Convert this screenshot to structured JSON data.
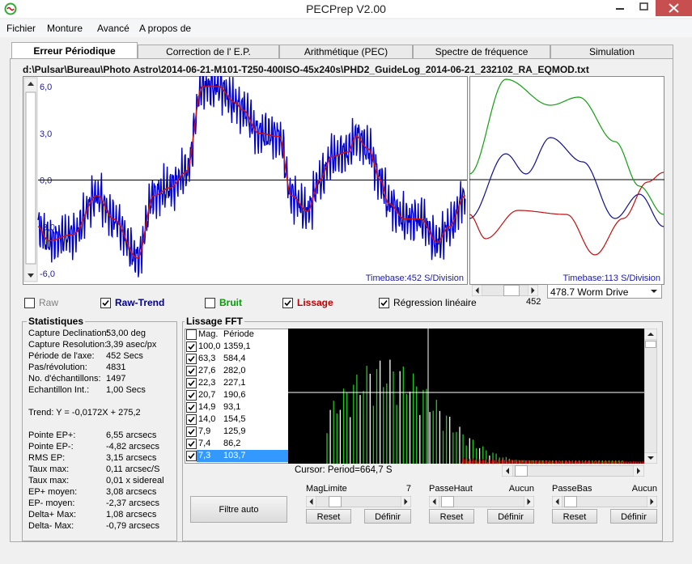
{
  "window": {
    "title": "PECPrep V2.00"
  },
  "menu": [
    "Fichier",
    "Monture",
    "Avancé",
    "A propos de"
  ],
  "tabs": [
    "Erreur Périodique",
    "Correction de l' E.P.",
    "Arithmétique (PEC)",
    "Spectre de fréquence",
    "Simulation"
  ],
  "file_path": "d:\\Pulsar\\Bureau\\Photo Astro\\2014-06-21-M101-T250-400ISO-45x240s\\PHD2_GuideLog_2014-06-21_232102_RA_EQMOD.txt",
  "main_plot": {
    "y_labels": [
      "6,0",
      "3,0",
      "0,0",
      "-3,0",
      "-6,0"
    ],
    "timebase": "Timebase:452 S/Division"
  },
  "side_plot": {
    "timebase": "Timebase:113 S/Division",
    "scroll_value": "452",
    "worm_select": "478.7 Worm Drive"
  },
  "display_options": [
    {
      "label": "Raw",
      "checked": false,
      "color": "#808080"
    },
    {
      "label": "Raw-Trend",
      "checked": true,
      "color": "#00008b"
    },
    {
      "label": "Bruit",
      "checked": false,
      "color": "#00a000"
    },
    {
      "label": "Lissage",
      "checked": true,
      "color": "#c00000"
    },
    {
      "label": "Régression linéaire",
      "checked": true,
      "color": "#000000"
    }
  ],
  "statistics": {
    "title": "Statistiques",
    "rows": [
      [
        "Capture Declination:",
        "53,00 deg"
      ],
      [
        "Capture Resolution:",
        "3,39 asec/px"
      ],
      [
        "Période de l'axe:",
        "452 Secs"
      ],
      [
        "Pas/révolution:",
        "4831"
      ],
      [
        "No. d'échantillons:",
        "1497"
      ],
      [
        "Echantillon Int.:",
        "1,00 Secs"
      ]
    ],
    "trend": "Trend: Y = -0,0172X + 275,2",
    "results": [
      [
        "Pointe EP+:",
        "6,55 arcsecs"
      ],
      [
        "Pointe EP-:",
        "-4,82 arcsecs"
      ],
      [
        "RMS EP:",
        "3,15 arcsecs"
      ],
      [
        "Taux max:",
        "0,11 arcsec/S"
      ],
      [
        "Taux max:",
        "0,01 x sidereal"
      ],
      [
        "EP+ moyen:",
        "3,08 arcsecs"
      ],
      [
        "EP- moyen:",
        "-2,37 arcsecs"
      ],
      [
        "Delta+ Max:",
        "1,08 arcsecs"
      ],
      [
        "Delta- Max:",
        "-0,79 arcsecs"
      ]
    ]
  },
  "fft": {
    "title": "Lissage FFT",
    "headers": [
      "Mag.",
      "Période"
    ],
    "rows": [
      {
        "mag": "100,0",
        "period": "1359,1"
      },
      {
        "mag": "63,3",
        "period": "584,4"
      },
      {
        "mag": "27,6",
        "period": "282,0"
      },
      {
        "mag": "22,3",
        "period": "227,1"
      },
      {
        "mag": "20,7",
        "period": "190,6"
      },
      {
        "mag": "14,9",
        "period": "93,1"
      },
      {
        "mag": "14,0",
        "period": "154,5"
      },
      {
        "mag": "7,9",
        "period": "125,9"
      },
      {
        "mag": "7,4",
        "period": "86,2"
      },
      {
        "mag": "7,3",
        "period": "103,7"
      }
    ],
    "cursor": "Cursor: Period=664,7 S"
  },
  "filtre_auto": "Filtre auto",
  "filters": [
    {
      "label": "MagLimite",
      "value": "7",
      "reset": "Reset",
      "define": "Définir"
    },
    {
      "label": "PasseHaut",
      "value": "Aucun",
      "reset": "Reset",
      "define": "Définir"
    },
    {
      "label": "PasseBas",
      "value": "Aucun",
      "reset": "Reset",
      "define": "Définir"
    }
  ]
}
